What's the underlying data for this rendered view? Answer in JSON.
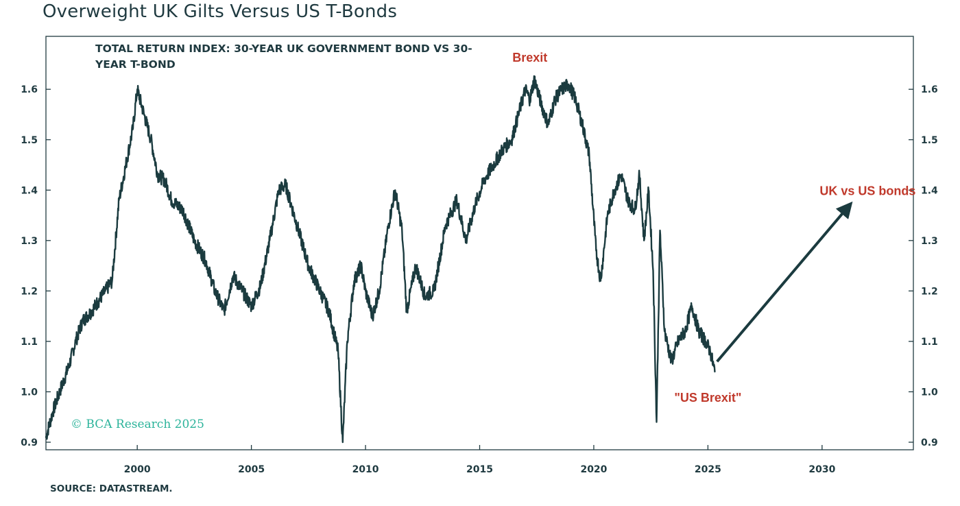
{
  "page": {
    "title": "Overweight UK Gilts Versus US T-Bonds",
    "source": "SOURCE: DATASTREAM."
  },
  "colors": {
    "line": "#1b3b3f",
    "annotation": "#c0392b",
    "copyright": "#2bb39a",
    "text": "#1f3a40"
  },
  "chart_data": {
    "type": "line",
    "title": "TOTAL RETURN INDEX: 30-YEAR UK GOVERNMENT BOND VS 30-YEAR T-BOND",
    "title_lines": [
      "TOTAL RETURN INDEX: 30-YEAR UK GOVERNMENT BOND VS 30-",
      "YEAR T-BOND"
    ],
    "xlabel": "",
    "ylabel": "",
    "xlim": [
      1996,
      2034
    ],
    "ylim": [
      0.885,
      1.705
    ],
    "x_ticks": [
      2000,
      2005,
      2010,
      2015,
      2020,
      2025,
      2030
    ],
    "y_ticks": [
      0.9,
      1.0,
      1.1,
      1.2,
      1.3,
      1.4,
      1.5,
      1.6
    ],
    "y_axes": "both",
    "grid": false,
    "legend": "none",
    "series": [
      {
        "x": [
          1996.0,
          1996.3,
          1996.6,
          1997.0,
          1997.3,
          1997.6,
          1998.0,
          1998.3,
          1998.6,
          1998.9,
          1999.2,
          1999.5,
          1999.8,
          2000.0,
          2000.3,
          2000.6,
          2000.9,
          2001.2,
          2001.5,
          2002.0,
          2002.5,
          2003.0,
          2003.4,
          2003.8,
          2004.2,
          2004.6,
          2005.0,
          2005.4,
          2005.8,
          2006.2,
          2006.5,
          2007.0,
          2007.5,
          2008.0,
          2008.4,
          2008.8,
          2009.0,
          2009.2,
          2009.5,
          2009.8,
          2010.0,
          2010.3,
          2010.6,
          2011.0,
          2011.3,
          2011.6,
          2011.8,
          2012.2,
          2012.6,
          2013.0,
          2013.5,
          2014.0,
          2014.4,
          2014.8,
          2015.2,
          2015.6,
          2016.0,
          2016.4,
          2016.7,
          2017.0,
          2017.2,
          2017.4,
          2017.7,
          2018.0,
          2018.3,
          2018.6,
          2018.9,
          2019.2,
          2019.5,
          2019.8,
          2020.1,
          2020.3,
          2020.6,
          2020.9,
          2021.2,
          2021.5,
          2021.8,
          2022.0,
          2022.2,
          2022.4,
          2022.6,
          2022.75,
          2022.9,
          2023.1,
          2023.4,
          2023.7,
          2024.0,
          2024.3,
          2024.6,
          2024.9,
          2025.1,
          2025.3
        ],
        "y": [
          0.91,
          0.96,
          1.0,
          1.05,
          1.1,
          1.14,
          1.16,
          1.18,
          1.2,
          1.22,
          1.38,
          1.45,
          1.52,
          1.6,
          1.55,
          1.5,
          1.43,
          1.42,
          1.38,
          1.36,
          1.3,
          1.26,
          1.2,
          1.16,
          1.23,
          1.2,
          1.17,
          1.21,
          1.3,
          1.4,
          1.41,
          1.33,
          1.25,
          1.2,
          1.16,
          1.08,
          0.9,
          1.1,
          1.22,
          1.25,
          1.2,
          1.15,
          1.2,
          1.33,
          1.4,
          1.32,
          1.16,
          1.25,
          1.19,
          1.2,
          1.33,
          1.38,
          1.3,
          1.37,
          1.42,
          1.45,
          1.48,
          1.5,
          1.55,
          1.6,
          1.58,
          1.62,
          1.57,
          1.53,
          1.58,
          1.6,
          1.61,
          1.58,
          1.53,
          1.47,
          1.28,
          1.22,
          1.35,
          1.4,
          1.43,
          1.38,
          1.36,
          1.43,
          1.3,
          1.4,
          1.24,
          0.94,
          1.32,
          1.12,
          1.06,
          1.1,
          1.12,
          1.17,
          1.12,
          1.1,
          1.08,
          1.04
        ]
      }
    ],
    "projection_arrow": {
      "x": [
        2025.4,
        2031.2
      ],
      "y": [
        1.06,
        1.37
      ]
    },
    "annotations": [
      {
        "text": "Brexit",
        "x": 2017.2,
        "y": 1.655
      },
      {
        "text": "\"US Brexit\"",
        "x": 2025.0,
        "y": 0.98
      },
      {
        "text": "UK vs US bonds",
        "x": 2032.0,
        "y": 1.39
      }
    ],
    "copyright": "© BCA Research 2025"
  }
}
